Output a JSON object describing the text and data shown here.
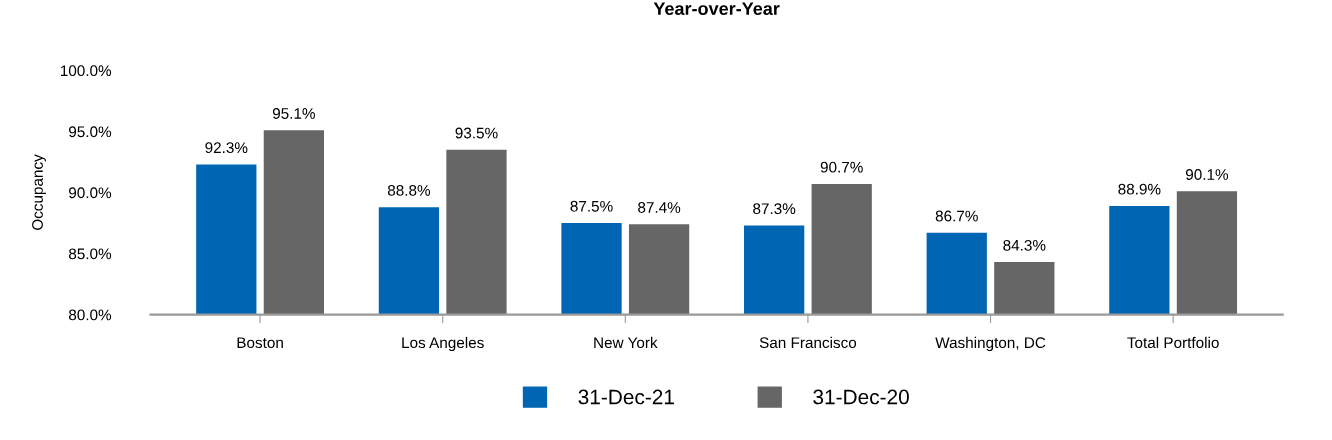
{
  "chart_data": {
    "type": "bar",
    "title": "Year-over-Year",
    "ylabel": "Occupancy",
    "categories": [
      "Boston",
      "Los Angeles",
      "New York",
      "San Francisco",
      "Washington, DC",
      "Total Portfolio"
    ],
    "series": [
      {
        "name": "31-Dec-21",
        "color": "#0066b3",
        "values": [
          92.3,
          88.8,
          87.5,
          87.3,
          86.7,
          88.9
        ],
        "value_labels": [
          "92.3%",
          "88.8%",
          "87.5%",
          "87.3%",
          "86.7%",
          "88.9%"
        ]
      },
      {
        "name": "31-Dec-20",
        "color": "#666666",
        "values": [
          95.1,
          93.5,
          87.4,
          90.7,
          84.3,
          90.1
        ],
        "value_labels": [
          "95.1%",
          "93.5%",
          "87.4%",
          "90.7%",
          "84.3%",
          "90.1%"
        ]
      }
    ],
    "ylim": [
      80,
      100
    ],
    "yticks": [
      {
        "value": 80,
        "label": "80.0%"
      },
      {
        "value": 85,
        "label": "85.0%"
      },
      {
        "value": 90,
        "label": "90.0%"
      },
      {
        "value": 95,
        "label": "95.0%"
      },
      {
        "value": 100,
        "label": "100.0%"
      }
    ],
    "grid": false,
    "legend": "bottom"
  }
}
